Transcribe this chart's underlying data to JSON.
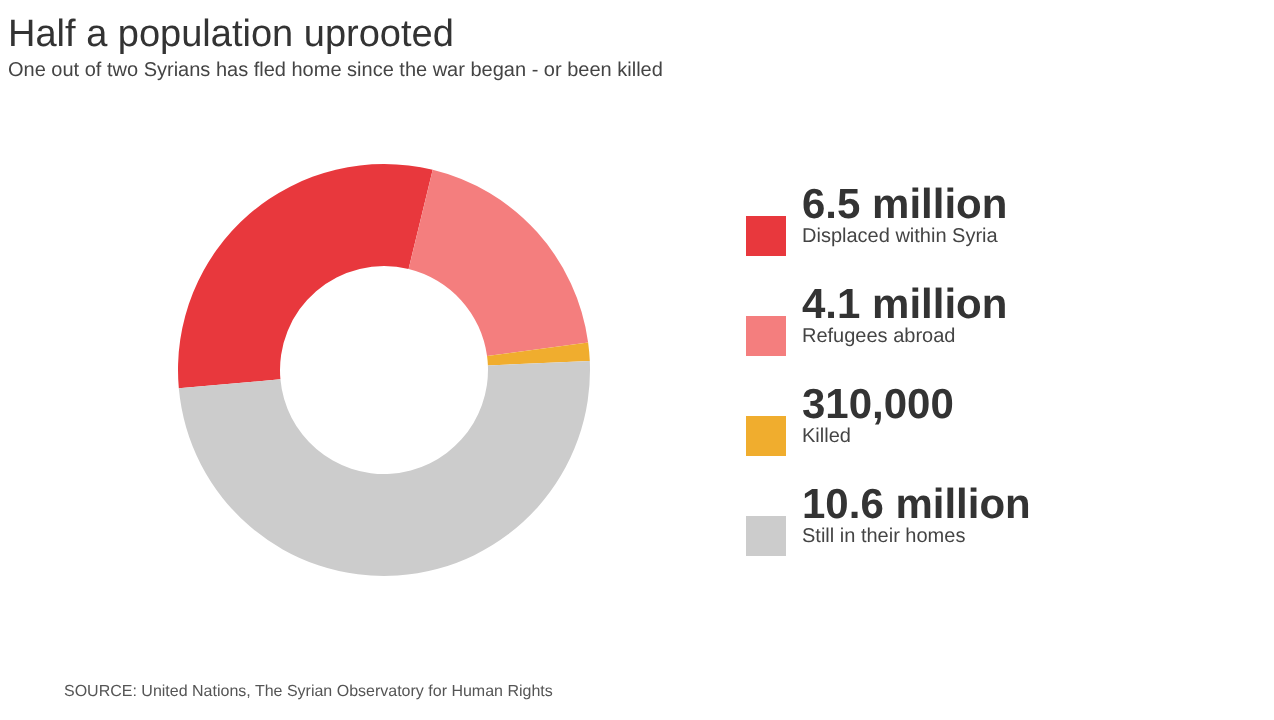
{
  "chart_data": {
    "type": "donut",
    "title": "Half a population uprooted",
    "subtitle": "One out of two Syrians has fled home since the war began - or been killed",
    "categories": [
      "Displaced within Syria",
      "Refugees abroad",
      "Killed",
      "Still in their homes"
    ],
    "values": [
      6500000,
      4100000,
      310000,
      10600000
    ],
    "value_labels": [
      "6.5 million",
      "4.1 million",
      "310,000",
      "10.6 million"
    ],
    "colors": [
      "#e8383d",
      "#f47e7e",
      "#f0ad2e",
      "#cccccc"
    ],
    "legend": "right",
    "annotations": [
      "SOURCE: United Nations, The Syrian Observatory for Human Rights"
    ]
  }
}
